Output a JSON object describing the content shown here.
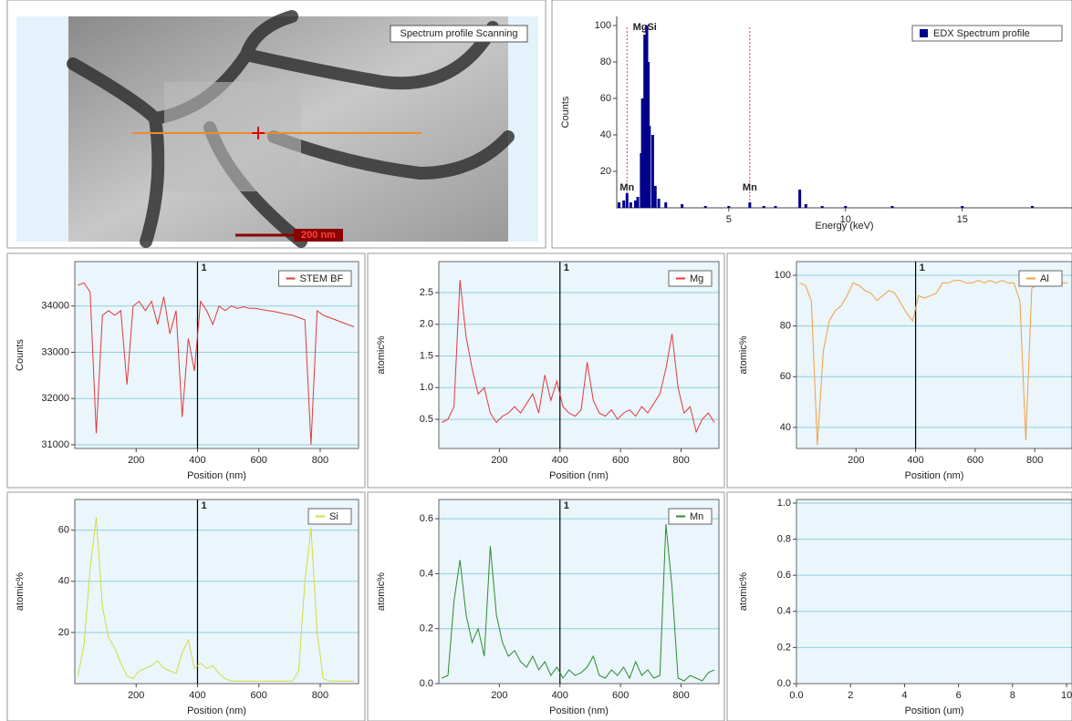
{
  "image_panel": {
    "label": "Spectrum profile Scanning",
    "scale_bar": "200 nm"
  },
  "chart_data": [
    {
      "type": "bar",
      "x_label": "Energy (keV)",
      "y_label": "Counts",
      "x": [
        0.3,
        0.5,
        0.64,
        0.8,
        1.0,
        1.1,
        1.25,
        1.3,
        1.4,
        1.49,
        1.55,
        1.6,
        1.74,
        1.85,
        2.0,
        2.3,
        3.0,
        4.0,
        5.0,
        5.9,
        6.5,
        7.0,
        8.04,
        8.3,
        9.0,
        10,
        12,
        15,
        18
      ],
      "series": [
        {
          "name": "EDX Spectrum profile",
          "color": "#00008b",
          "values": [
            3,
            4,
            8,
            3,
            4,
            6,
            30,
            60,
            95,
            100,
            80,
            45,
            40,
            12,
            5,
            3,
            2,
            1,
            1,
            3,
            1,
            1,
            10,
            2,
            1,
            1,
            1,
            1,
            1
          ]
        }
      ],
      "annotations": [
        {
          "x": 0.64,
          "label": "Mn"
        },
        {
          "x": 1.4,
          "label": "MgSi"
        },
        {
          "x": 5.9,
          "label": "Mn"
        }
      ],
      "xlim": [
        0.2,
        19.7
      ],
      "xticks": [
        5,
        10,
        15
      ],
      "ylim": [
        0,
        105
      ],
      "yticks": [
        20,
        40,
        60,
        80,
        100
      ]
    },
    {
      "type": "line",
      "x_label": "Position (nm)",
      "y_label": "Counts",
      "x": [
        10,
        30,
        50,
        70,
        90,
        110,
        130,
        150,
        170,
        190,
        210,
        230,
        250,
        270,
        290,
        310,
        330,
        350,
        370,
        390,
        410,
        430,
        450,
        470,
        490,
        510,
        530,
        550,
        570,
        590,
        610,
        630,
        650,
        670,
        690,
        710,
        730,
        750,
        770,
        790,
        810,
        830,
        850,
        870,
        890,
        910
      ],
      "series": [
        {
          "name": "STEM BF",
          "color": "#e03a3a",
          "values": [
            34450,
            34500,
            34300,
            31250,
            33800,
            33900,
            33800,
            33900,
            32300,
            34000,
            34100,
            33900,
            34100,
            33600,
            34200,
            33400,
            33900,
            31600,
            33300,
            32600,
            34100,
            33900,
            33600,
            34000,
            33900,
            34000,
            33950,
            33980,
            33950,
            33950,
            33920,
            33900,
            33880,
            33850,
            33820,
            33800,
            33750,
            33700,
            31000,
            33900,
            33800,
            33750,
            33700,
            33650,
            33600,
            33550
          ]
        }
      ],
      "cursor": {
        "x": 400,
        "label": "1"
      },
      "xlim": [
        0,
        925
      ],
      "xticks": [
        200,
        400,
        600,
        800
      ],
      "ylim": [
        30920,
        34960
      ],
      "yticks": [
        31000,
        32000,
        33000,
        34000
      ],
      "grid": true
    },
    {
      "type": "line",
      "x_label": "Position (nm)",
      "y_label": "atomic%",
      "x": [
        10,
        30,
        50,
        70,
        90,
        110,
        130,
        150,
        170,
        190,
        210,
        230,
        250,
        270,
        290,
        310,
        330,
        350,
        370,
        390,
        410,
        430,
        450,
        470,
        490,
        510,
        530,
        550,
        570,
        590,
        610,
        630,
        650,
        670,
        690,
        710,
        730,
        750,
        770,
        790,
        810,
        830,
        850,
        870,
        890,
        910
      ],
      "series": [
        {
          "name": "Mg",
          "color": "#e03a3a",
          "values": [
            0.45,
            0.5,
            0.7,
            2.7,
            1.8,
            1.3,
            0.9,
            1.0,
            0.6,
            0.45,
            0.55,
            0.6,
            0.7,
            0.6,
            0.75,
            0.9,
            0.6,
            1.2,
            0.8,
            1.1,
            0.7,
            0.6,
            0.55,
            0.65,
            1.4,
            0.8,
            0.6,
            0.55,
            0.65,
            0.5,
            0.6,
            0.65,
            0.55,
            0.7,
            0.6,
            0.75,
            0.9,
            1.3,
            1.85,
            1.0,
            0.6,
            0.7,
            0.3,
            0.5,
            0.6,
            0.45
          ]
        }
      ],
      "cursor": {
        "x": 400,
        "label": "1"
      },
      "xlim": [
        0,
        925
      ],
      "xticks": [
        200,
        400,
        600,
        800
      ],
      "ylim": [
        0.04,
        2.99
      ],
      "yticks": [
        0.5,
        {
          "value": 1,
          "label": "1.0"
        },
        1.5,
        {
          "value": 2,
          "label": "2.0"
        },
        2.5
      ],
      "grid": true
    },
    {
      "type": "line",
      "x_label": "Position (nm)",
      "y_label": "atomic%",
      "x": [
        10,
        30,
        50,
        70,
        90,
        110,
        130,
        150,
        170,
        190,
        210,
        230,
        250,
        270,
        290,
        310,
        330,
        350,
        370,
        390,
        410,
        430,
        450,
        470,
        490,
        510,
        530,
        550,
        570,
        590,
        610,
        630,
        650,
        670,
        690,
        710,
        730,
        750,
        770,
        790,
        810,
        830,
        850,
        870,
        890,
        910
      ],
      "series": [
        {
          "name": "Al",
          "color": "#f0a040",
          "values": [
            97,
            96,
            90,
            33,
            70,
            82,
            86,
            88,
            92,
            97,
            96,
            94,
            93,
            90,
            92,
            94,
            93,
            89,
            85,
            82,
            92,
            91,
            92,
            93,
            97,
            97,
            98,
            98,
            97,
            97,
            98,
            97,
            98,
            97,
            98,
            97,
            97,
            90,
            35,
            95,
            96,
            97,
            97,
            97,
            97,
            97
          ]
        }
      ],
      "cursor": {
        "x": 400,
        "label": "1"
      },
      "xlim": [
        0,
        925
      ],
      "xticks": [
        200,
        400,
        600,
        800
      ],
      "ylim": [
        31.7,
        105.4
      ],
      "yticks": [
        40,
        60,
        80,
        100
      ],
      "grid": true
    },
    {
      "type": "line",
      "x_label": "Position (nm)",
      "y_label": "atomic%",
      "x": [
        10,
        30,
        50,
        70,
        90,
        110,
        130,
        150,
        170,
        190,
        210,
        230,
        250,
        270,
        290,
        310,
        330,
        350,
        370,
        390,
        410,
        430,
        450,
        470,
        490,
        510,
        530,
        550,
        570,
        590,
        610,
        630,
        650,
        670,
        690,
        710,
        730,
        750,
        770,
        790,
        810,
        830,
        850,
        870,
        890,
        910
      ],
      "series": [
        {
          "name": "Si",
          "color": "#d2dc3c",
          "values": [
            3,
            15,
            45,
            65,
            30,
            18,
            14,
            8,
            3,
            2,
            5,
            6,
            7,
            9,
            6,
            5,
            4,
            12,
            17,
            6,
            8,
            6,
            7,
            4,
            2,
            1,
            1,
            1,
            1,
            1,
            1,
            1,
            1,
            1,
            1,
            1,
            5,
            40,
            61,
            20,
            2,
            1,
            1,
            1,
            1,
            1
          ]
        }
      ],
      "cursor": {
        "x": 400,
        "label": "1"
      },
      "xlim": [
        0,
        925
      ],
      "xticks": [
        200,
        400,
        600,
        800
      ],
      "ylim": [
        0,
        72
      ],
      "yticks": [
        20,
        40,
        60
      ],
      "grid": true
    },
    {
      "type": "line",
      "x_label": "Position (nm)",
      "y_label": "atomic%",
      "x": [
        10,
        30,
        50,
        70,
        90,
        110,
        130,
        150,
        170,
        190,
        210,
        230,
        250,
        270,
        290,
        310,
        330,
        350,
        370,
        390,
        410,
        430,
        450,
        470,
        490,
        510,
        530,
        550,
        570,
        590,
        610,
        630,
        650,
        670,
        690,
        710,
        730,
        750,
        770,
        790,
        810,
        830,
        850,
        870,
        890,
        910
      ],
      "series": [
        {
          "name": "Mn",
          "color": "#2e8b2e",
          "values": [
            0.02,
            0.03,
            0.3,
            0.45,
            0.25,
            0.15,
            0.2,
            0.1,
            0.5,
            0.25,
            0.15,
            0.1,
            0.12,
            0.08,
            0.06,
            0.1,
            0.05,
            0.08,
            0.03,
            0.06,
            0.02,
            0.05,
            0.03,
            0.04,
            0.06,
            0.1,
            0.03,
            0.02,
            0.05,
            0.03,
            0.06,
            0.02,
            0.08,
            0.03,
            0.05,
            0.02,
            0.03,
            0.58,
            0.35,
            0.02,
            0.01,
            0.03,
            0.02,
            0.01,
            0.04,
            0.05
          ]
        }
      ],
      "cursor": {
        "x": 400,
        "label": "1"
      },
      "xlim": [
        0,
        925
      ],
      "xticks": [
        200,
        400,
        600,
        800
      ],
      "ylim": [
        0,
        0.67
      ],
      "yticks": [
        {
          "value": 0,
          "label": "0.0"
        },
        0.2,
        0.4,
        0.6
      ],
      "grid": true
    },
    {
      "type": "line",
      "x_label": "Position (um)",
      "y_label": "atomic%",
      "series": [],
      "xlim": [
        0,
        10.2
      ],
      "xticks": [
        {
          "value": 0,
          "label": "0.0"
        },
        2,
        4,
        6,
        8,
        10
      ],
      "ylim": [
        0,
        1.02
      ],
      "yticks": [
        {
          "value": 0,
          "label": "0.0"
        },
        0.2,
        0.4,
        0.6,
        0.8,
        {
          "value": 1,
          "label": "1.0"
        }
      ],
      "grid": true
    }
  ]
}
